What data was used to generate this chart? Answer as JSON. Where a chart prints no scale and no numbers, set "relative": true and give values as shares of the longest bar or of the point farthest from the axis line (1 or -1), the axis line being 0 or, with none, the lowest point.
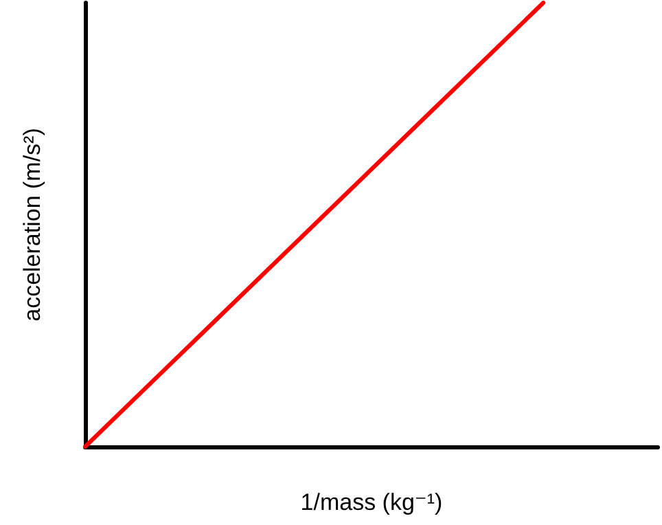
{
  "chart_data": {
    "type": "line",
    "relative": true,
    "xlabel": "1/mass (kg⁻¹)",
    "ylabel": "acceleration (m/s²)",
    "marker": "none",
    "categories": [
      null,
      null,
      null,
      null,
      null,
      null
    ],
    "series": [
      {
        "color": "#ff0000",
        "values": [
          0,
          0.25,
          0.5,
          0.75,
          1,
          null
        ]
      }
    ]
  }
}
